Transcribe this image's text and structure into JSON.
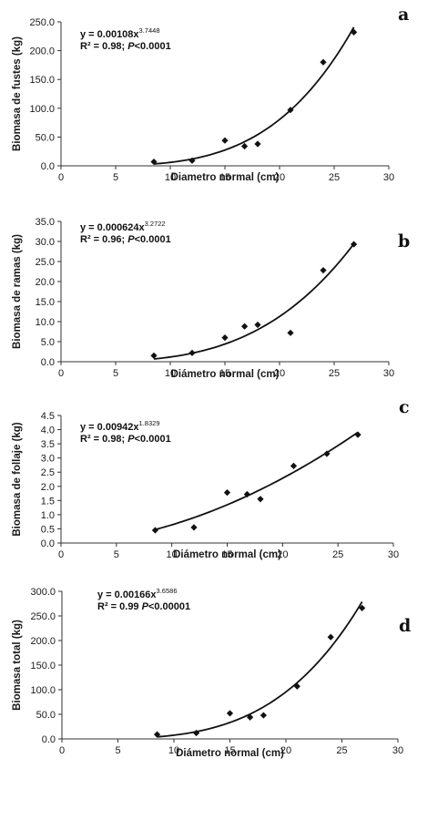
{
  "chart_data": [
    {
      "type": "scatter",
      "panel_label": "a",
      "xlabel": "Diametro normal (cm)",
      "ylabel": "Biomasa de fustes (kg)",
      "xlim": [
        0,
        30
      ],
      "ylim": [
        0,
        250
      ],
      "x_ticks": [
        "0",
        "5",
        "10",
        "15",
        "20",
        "25",
        "30"
      ],
      "y_ticks": [
        "0.0",
        "50.0",
        "100.0",
        "150.0",
        "200.0",
        "250.0"
      ],
      "equation": {
        "prefix": "y = 0.00108x",
        "exponent": "3.7448"
      },
      "r2": {
        "prefix": "R² = 0.98; ",
        "p_symbol": "P",
        "p_rest": "<0.0001"
      },
      "fit": {
        "a": 0.00108,
        "b": 3.7448
      },
      "x": [
        8.5,
        12,
        15,
        16.8,
        18,
        21,
        24,
        26.8
      ],
      "y": [
        7,
        9,
        44,
        34,
        38,
        97,
        180,
        232
      ]
    },
    {
      "type": "scatter",
      "panel_label": "b",
      "xlabel": "Diámetro normal (cm)",
      "ylabel": "Biomasa de ramas (kg)",
      "xlim": [
        0,
        30
      ],
      "ylim": [
        0,
        35
      ],
      "x_ticks": [
        "0",
        "5",
        "10",
        "15",
        "20",
        "25",
        "30"
      ],
      "y_ticks": [
        "0.0",
        "5.0",
        "10.0",
        "15.0",
        "20.0",
        "25.0",
        "30.0",
        "35.0"
      ],
      "equation": {
        "prefix": "y = 0.000624x",
        "exponent": "3.2722"
      },
      "r2": {
        "prefix": "R² = 0.96; ",
        "p_symbol": "P",
        "p_rest": "<0.0001"
      },
      "fit": {
        "a": 0.000624,
        "b": 3.2722
      },
      "x": [
        8.5,
        12,
        15,
        16.8,
        18,
        21,
        24,
        26.8
      ],
      "y": [
        1.5,
        2.2,
        6.0,
        8.8,
        9.2,
        7.2,
        22.8,
        29.3
      ]
    },
    {
      "type": "scatter",
      "panel_label": "c",
      "xlabel": "Diámetro normal (cm)",
      "ylabel": "Biomasa de follaje (kg)",
      "xlim": [
        0,
        30
      ],
      "ylim": [
        0,
        4.5
      ],
      "x_ticks": [
        "0",
        "5",
        "10",
        "15",
        "20",
        "25",
        "30"
      ],
      "y_ticks": [
        "0.0",
        "0.5",
        "1.0",
        "1.5",
        "2.0",
        "2.5",
        "3.0",
        "3.5",
        "4.0",
        "4.5"
      ],
      "equation": {
        "prefix": "y = 0.00942x",
        "exponent": "1.8329"
      },
      "r2": {
        "prefix": "R² = 0.98; ",
        "p_symbol": "P",
        "p_rest": "<0.0001"
      },
      "fit": {
        "a": 0.00942,
        "b": 1.8329
      },
      "x": [
        8.5,
        12,
        15,
        16.8,
        18,
        21,
        24,
        26.8
      ],
      "y": [
        0.45,
        0.55,
        1.78,
        1.72,
        1.55,
        2.72,
        3.15,
        3.82
      ]
    },
    {
      "type": "scatter",
      "panel_label": "d",
      "xlabel": "Diámetro normal (cm)",
      "ylabel": "Biomasa total (kg)",
      "xlim": [
        0,
        30
      ],
      "ylim": [
        0,
        300
      ],
      "x_ticks": [
        "0",
        "5",
        "10",
        "15",
        "20",
        "25",
        "30"
      ],
      "y_ticks": [
        "0.0",
        "50.0",
        "100.0",
        "150.0",
        "200.0",
        "250.0",
        "300.0"
      ],
      "equation": {
        "prefix": "y = 0.00166x",
        "exponent": "3.6586"
      },
      "r2": {
        "prefix": "R² = 0.99 ",
        "p_symbol": "P",
        "p_rest": "<0.00001"
      },
      "fit": {
        "a": 0.00166,
        "b": 3.6586
      },
      "x": [
        8.5,
        12,
        15,
        16.8,
        18,
        21,
        24,
        26.8
      ],
      "y": [
        9,
        12,
        52,
        44,
        48,
        107,
        207,
        266
      ]
    }
  ],
  "style": {
    "marker_color": "#111111",
    "curve_color": "#111111",
    "axis_color": "#333333"
  }
}
